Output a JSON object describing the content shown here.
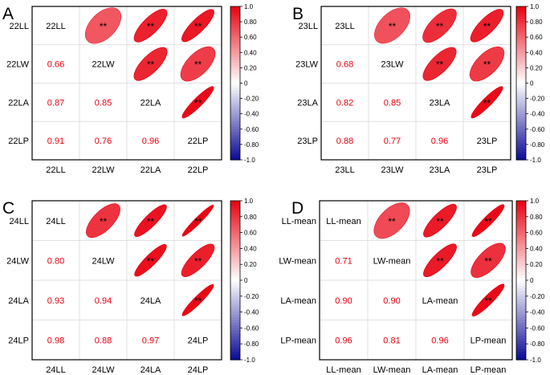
{
  "chart_data": [
    {
      "type": "heatmap",
      "panel_letter": "A",
      "variables": [
        "22LL",
        "22LW",
        "22LA",
        "22LP"
      ],
      "correlations": [
        [
          1.0,
          0.66,
          0.87,
          0.91
        ],
        [
          0.66,
          1.0,
          0.85,
          0.76
        ],
        [
          0.87,
          0.85,
          1.0,
          0.96
        ],
        [
          0.91,
          0.76,
          0.96,
          1.0
        ]
      ],
      "significance": [
        [
          "",
          "**",
          "**",
          "**"
        ],
        [
          "**",
          "",
          "**",
          "**"
        ],
        [
          "**",
          "**",
          "",
          "**"
        ],
        [
          "**",
          "**",
          "**",
          ""
        ]
      ],
      "colorbar": {
        "min": -1.0,
        "max": 1.0,
        "ticks": [
          "1.0",
          "0.80",
          "0.60",
          "0.40",
          "0.20",
          "0",
          "-0.20",
          "-0.40",
          "-0.60",
          "-0.80",
          "-1.0"
        ]
      }
    },
    {
      "type": "heatmap",
      "panel_letter": "B",
      "variables": [
        "23LL",
        "23LW",
        "23LA",
        "23LP"
      ],
      "correlations": [
        [
          1.0,
          0.68,
          0.82,
          0.88
        ],
        [
          0.68,
          1.0,
          0.85,
          0.77
        ],
        [
          0.82,
          0.85,
          1.0,
          0.96
        ],
        [
          0.88,
          0.77,
          0.96,
          1.0
        ]
      ],
      "significance": [
        [
          "",
          "**",
          "**",
          "**"
        ],
        [
          "**",
          "",
          "**",
          "**"
        ],
        [
          "**",
          "**",
          "",
          "**"
        ],
        [
          "**",
          "**",
          "**",
          ""
        ]
      ],
      "colorbar": {
        "min": -1.0,
        "max": 1.0,
        "ticks": [
          "1.0",
          "0.80",
          "0.60",
          "0.40",
          "0.20",
          "0",
          "-0.20",
          "-0.40",
          "-0.60",
          "-0.80",
          "-1.0"
        ]
      }
    },
    {
      "type": "heatmap",
      "panel_letter": "C",
      "variables": [
        "24LL",
        "24LW",
        "24LA",
        "24LP"
      ],
      "correlations": [
        [
          1.0,
          0.8,
          0.93,
          0.98
        ],
        [
          0.8,
          1.0,
          0.94,
          0.88
        ],
        [
          0.93,
          0.94,
          1.0,
          0.97
        ],
        [
          0.98,
          0.88,
          0.97,
          1.0
        ]
      ],
      "significance": [
        [
          "",
          "**",
          "**",
          "**"
        ],
        [
          "**",
          "",
          "**",
          "**"
        ],
        [
          "**",
          "**",
          "",
          "**"
        ],
        [
          "**",
          "**",
          "**",
          ""
        ]
      ],
      "colorbar": {
        "min": -1.0,
        "max": 1.0,
        "ticks": [
          "1.0",
          "0.80",
          "0.60",
          "0.40",
          "0.20",
          "0",
          "-0.20",
          "-0.40",
          "-0.60",
          "-0.80",
          "-1.0"
        ]
      }
    },
    {
      "type": "heatmap",
      "panel_letter": "D",
      "variables": [
        "LL-mean",
        "LW-mean",
        "LA-mean",
        "LP-mean"
      ],
      "correlations": [
        [
          1.0,
          0.71,
          0.9,
          0.96
        ],
        [
          0.71,
          1.0,
          0.9,
          0.81
        ],
        [
          0.9,
          0.9,
          1.0,
          0.96
        ],
        [
          0.96,
          0.81,
          0.96,
          1.0
        ]
      ],
      "significance": [
        [
          "",
          "**",
          "**",
          "**"
        ],
        [
          "**",
          "",
          "**",
          "**"
        ],
        [
          "**",
          "**",
          "",
          "**"
        ],
        [
          "**",
          "**",
          "**",
          ""
        ]
      ],
      "colorbar": {
        "min": -1.0,
        "max": 1.0,
        "ticks": [
          "1.0",
          "0.80",
          "0.60",
          "0.40",
          "0.20",
          "0",
          "-0.20",
          "-0.40",
          "-0.60",
          "-0.80",
          "-1.0"
        ]
      }
    }
  ],
  "colors": {
    "positive": "#e8000f",
    "negative": "#0a0a96",
    "neutral": "#ffffff",
    "coef_text": "#e8000f",
    "grid": "#d8d8d8",
    "frame": "#000000"
  }
}
